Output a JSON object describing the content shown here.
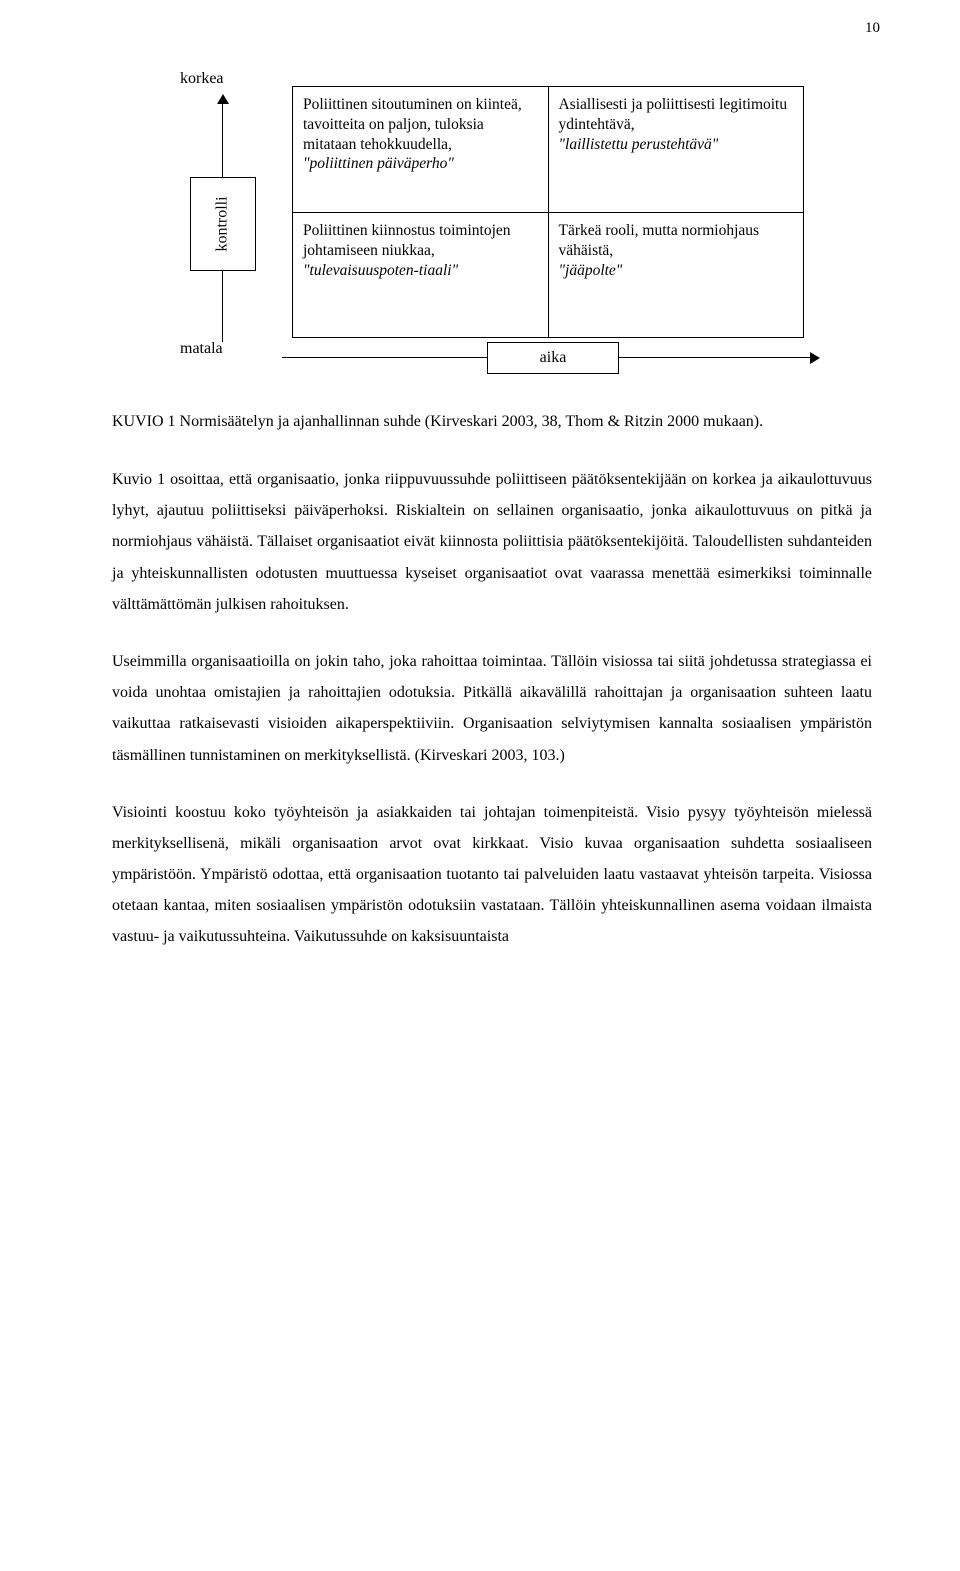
{
  "page_number": "10",
  "diagram": {
    "y_label_top": "korkea",
    "y_label_bottom": "matala",
    "y_box_label": "kontrolli",
    "x_box_label": "aika",
    "cells": {
      "tl_line1": "Poliittinen sitoutuminen on kiinteä, tavoitteita on paljon, tuloksia mitataan tehokkuudella,",
      "tl_italic": "\"poliittinen päiväperho\"",
      "tr_line1": "Asiallisesti ja poliittisesti legitimoitu ydintehtävä,",
      "tr_italic": "\"laillistettu perustehtävä\"",
      "bl_line1": "Poliittinen kiinnostus toimintojen johtamiseen niukkaa,",
      "bl_italic": "\"tulevaisuuspoten-tiaali\"",
      "br_line1": "Tärkeä rooli, mutta normiohjaus vähäistä,",
      "br_italic": "\"jääpolte\""
    }
  },
  "caption": "KUVIO 1 Normisäätelyn ja ajanhallinnan suhde (Kirveskari 2003, 38, Thom & Ritzin 2000 mukaan).",
  "paragraphs": {
    "p1": "Kuvio 1 osoittaa, että organisaatio, jonka riippuvuussuhde poliittiseen päätöksentekijään on korkea ja aikaulottuvuus lyhyt, ajautuu poliittiseksi päiväperhoksi. Riskialtein on sellainen organisaatio, jonka aikaulottuvuus on pitkä ja normiohjaus vähäistä. Tällaiset organisaatiot eivät kiinnosta poliittisia päätöksentekijöitä. Taloudellisten suhdanteiden ja yhteiskunnallisten odotusten muuttuessa kyseiset organisaatiot ovat vaarassa menettää esimerkiksi toiminnalle välttämättömän julkisen rahoituksen.",
    "p2": "Useimmilla organisaatioilla on jokin taho, joka rahoittaa toimintaa. Tällöin visiossa tai siitä johdetussa strategiassa ei voida unohtaa omistajien ja rahoittajien odotuksia. Pitkällä aikavälillä rahoittajan ja organisaation suhteen laatu vaikuttaa ratkaisevasti visioiden aikaperspektiiviin. Organisaation selviytymisen kannalta sosiaalisen ympäristön täsmällinen tunnistaminen on merkityksellistä. (Kirveskari 2003, 103.)",
    "p3": "Visiointi koostuu koko työyhteisön ja asiakkaiden tai johtajan toimenpiteistä. Visio pysyy työyhteisön mielessä merkityksellisenä, mikäli organisaation arvot ovat kirkkaat. Visio kuvaa organisaation suhdetta sosiaaliseen ympäristöön. Ympäristö odottaa, että organisaation tuotanto tai palveluiden laatu vastaavat yhteisön tarpeita. Visiossa otetaan kantaa, miten sosiaalisen ympäristön odotuksiin vastataan. Tällöin yhteiskunnallinen asema voidaan ilmaista vastuu- ja vaikutussuhteina. Vaikutussuhde on kaksisuuntaista"
  },
  "style": {
    "page_bg": "#ffffff",
    "text_color": "#000000",
    "border_color": "#000000",
    "body_font_size_pt": 12,
    "caption_font_size_pt": 12,
    "line_height_body": 1.95
  }
}
